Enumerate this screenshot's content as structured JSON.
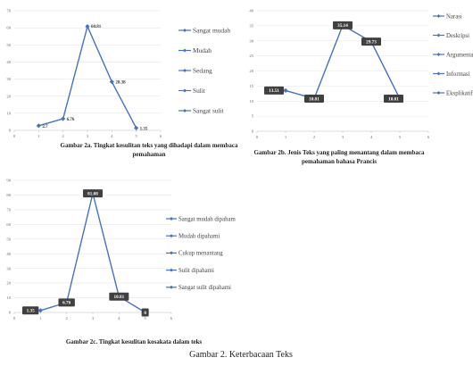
{
  "figure_caption": "Gambar 2. Keterbacaan Teks",
  "series_color": "#4472c4",
  "chart_data": [
    {
      "type": "line",
      "id": "2a",
      "x": [
        1,
        2,
        3,
        4,
        5
      ],
      "values": [
        2.7,
        6.76,
        60.81,
        28.38,
        1.35
      ],
      "labels": [
        "2.7",
        "6.76",
        "60.81",
        "28.38",
        "1.35"
      ],
      "label_style": "plain",
      "categories": [
        "Sangat mudah",
        "Mudah",
        "Sedang",
        "Sulit",
        "Sangat sulit"
      ],
      "ylim": [
        0,
        70
      ],
      "yticks": [
        "0",
        "10",
        "20",
        "30",
        "40",
        "50",
        "60",
        "70"
      ],
      "xlim": [
        0,
        6
      ],
      "xticks": [
        "0",
        "1",
        "2",
        "3",
        "4",
        "5",
        "6"
      ],
      "caption": [
        "Gambar 2a. Tingkat kesulitan teks yang dihadapi dalam membaca",
        "pemahaman"
      ]
    },
    {
      "type": "line",
      "id": "2b",
      "x": [
        1,
        2,
        3,
        4,
        5
      ],
      "values": [
        13.51,
        10.81,
        35.14,
        29.73,
        10.81
      ],
      "labels": [
        "13.51",
        "10.81",
        "35.14",
        "29.73",
        "10.81"
      ],
      "label_style": "boxed",
      "categories": [
        "Narasi",
        "Deskripsi",
        "Argumentasi",
        "Informasi",
        "Eksplikatif"
      ],
      "ylim": [
        0,
        40
      ],
      "yticks": [
        "0",
        "5",
        "10",
        "15",
        "20",
        "25",
        "30",
        "35",
        "40"
      ],
      "xlim": [
        0,
        6
      ],
      "xticks": [
        "0",
        "1",
        "2",
        "3",
        "4",
        "5",
        "6"
      ],
      "caption": [
        "Gambar 2b. Jenis Teks yang paling menantang dalam membaca",
        "pemahaman bahasa Prancis"
      ]
    },
    {
      "type": "line",
      "id": "2c",
      "x": [
        1,
        2,
        3,
        4,
        5
      ],
      "values": [
        1.35,
        6.76,
        81.08,
        10.81,
        0
      ],
      "labels": [
        "1.35",
        "6.76",
        "81.08",
        "10.81",
        "0"
      ],
      "label_style": "boxed",
      "categories": [
        "Sangat mudah dipaham",
        "Mudah dipahami",
        "Cukup menantang",
        "Sulit dipahami",
        "Sangat sulit dipahami"
      ],
      "ylim": [
        0,
        90
      ],
      "yticks": [
        "0",
        "10",
        "20",
        "30",
        "40",
        "50",
        "60",
        "70",
        "80",
        "90"
      ],
      "xlim": [
        0,
        6
      ],
      "xticks": [
        "0",
        "1",
        "2",
        "3",
        "4",
        "5",
        "6"
      ],
      "caption": [
        "Gambar 2c. Tingkat kesulitan kosakata dalam teks"
      ]
    }
  ]
}
